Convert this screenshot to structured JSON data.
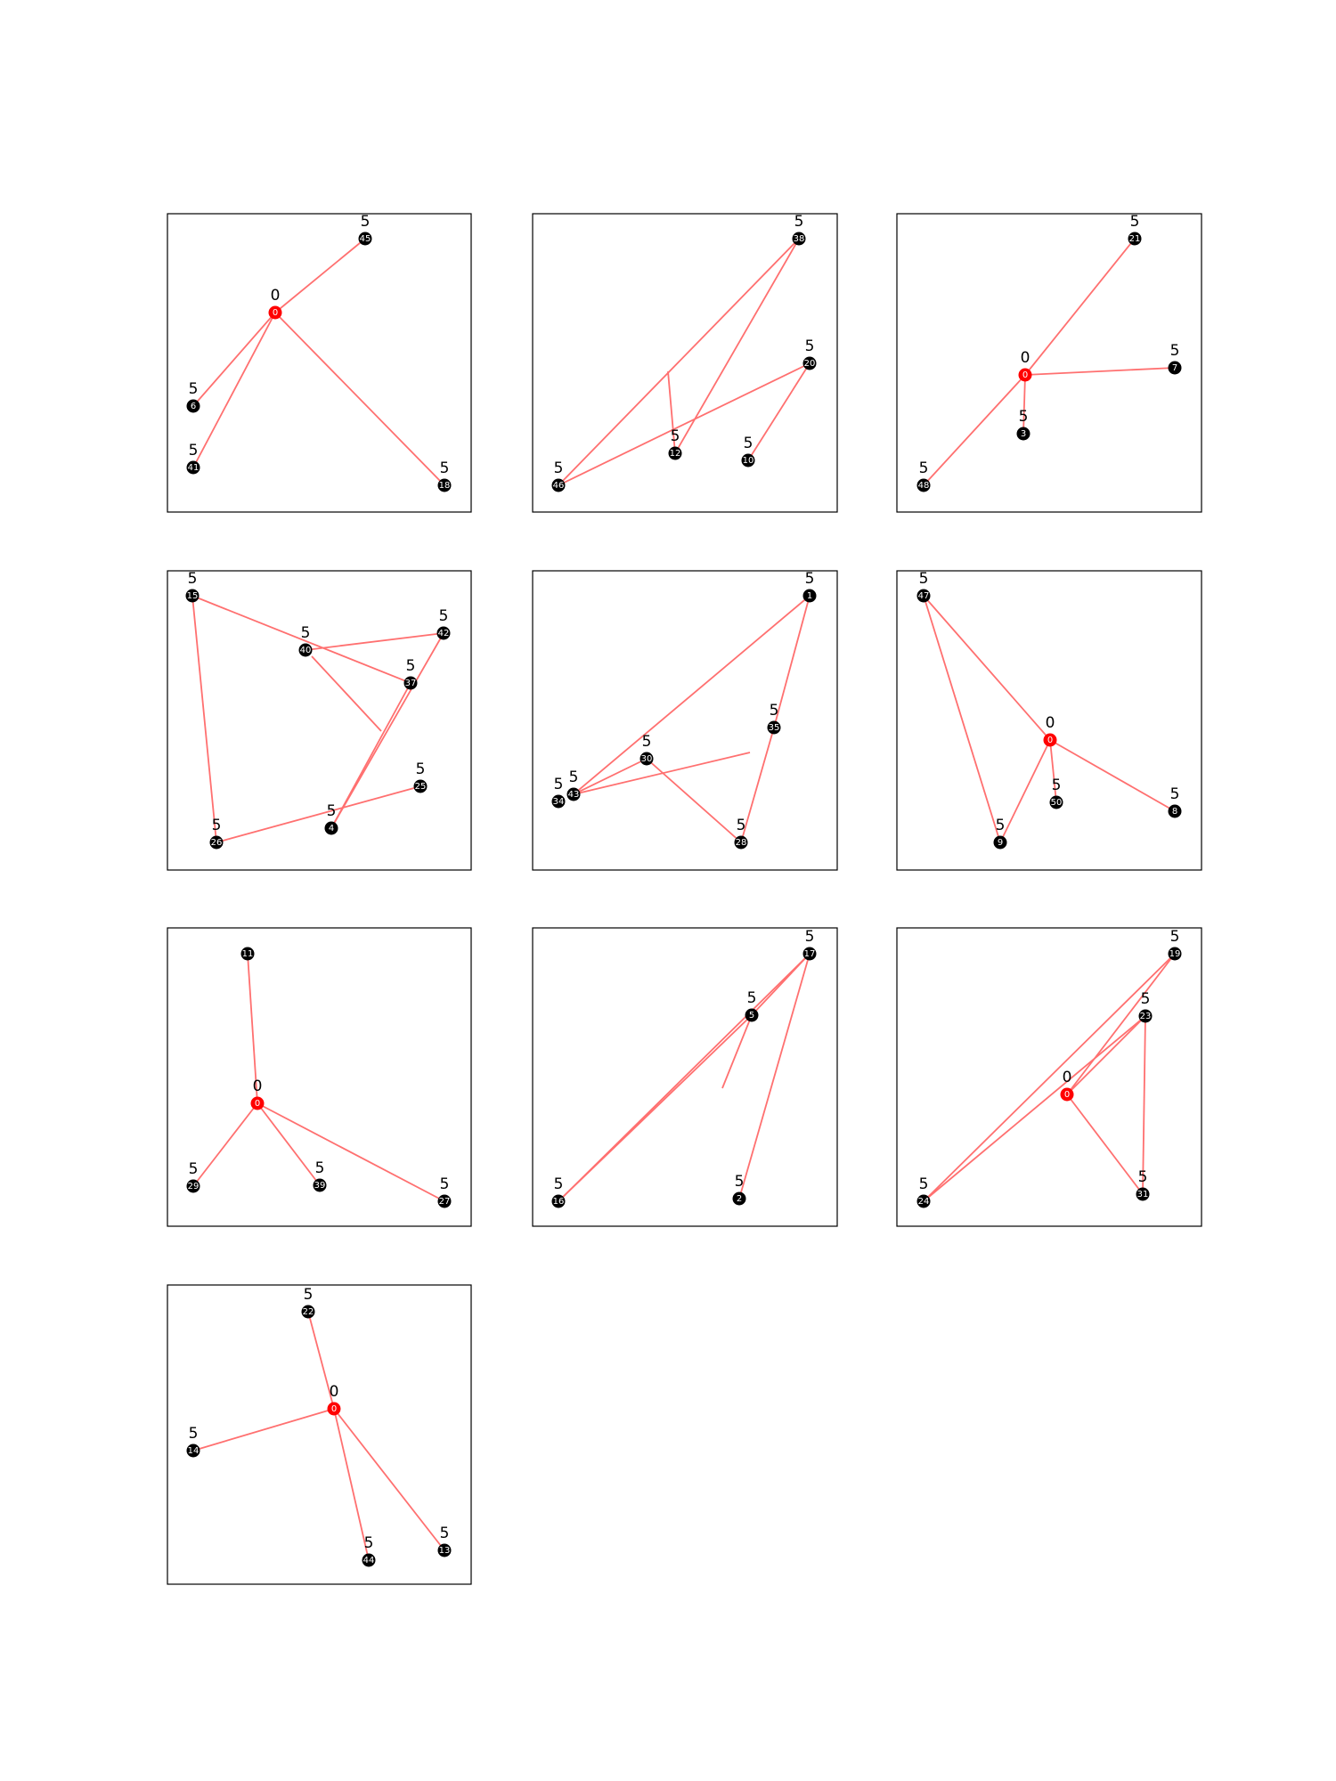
{
  "panels": [
    {
      "nodes": [
        {
          "id": "0",
          "value": "0",
          "red": true
        },
        {
          "id": "45",
          "value": "5"
        },
        {
          "id": "6",
          "value": "5"
        },
        {
          "id": "41",
          "value": "5"
        },
        {
          "id": "18",
          "value": "5"
        }
      ],
      "edges": [
        [
          "0",
          "45"
        ],
        [
          "0",
          "6"
        ],
        [
          "0",
          "41"
        ],
        [
          "0",
          "18"
        ]
      ]
    },
    {
      "nodes": [
        {
          "id": "38",
          "value": "5"
        },
        {
          "id": "20",
          "value": "5"
        },
        {
          "id": "12",
          "value": "5"
        },
        {
          "id": "10",
          "value": "5"
        },
        {
          "id": "46",
          "value": "5"
        }
      ],
      "edges": [
        [
          "38",
          "46"
        ],
        [
          "38",
          "12"
        ],
        [
          "20",
          "46"
        ],
        [
          "20",
          "10"
        ]
      ]
    },
    {
      "nodes": [
        {
          "id": "21",
          "value": "5"
        },
        {
          "id": "0",
          "value": "0",
          "red": true
        },
        {
          "id": "7",
          "value": "5"
        },
        {
          "id": "3",
          "value": "5"
        },
        {
          "id": "48",
          "value": "5"
        }
      ],
      "edges": [
        [
          "0",
          "21"
        ],
        [
          "0",
          "7"
        ],
        [
          "0",
          "3"
        ],
        [
          "0",
          "48"
        ]
      ]
    },
    {
      "nodes": [
        {
          "id": "15",
          "value": "5"
        },
        {
          "id": "40",
          "value": "5"
        },
        {
          "id": "42",
          "value": "5"
        },
        {
          "id": "37",
          "value": "5"
        },
        {
          "id": "25",
          "value": "5"
        },
        {
          "id": "26",
          "value": "5"
        },
        {
          "id": "4",
          "value": "5"
        }
      ],
      "edges": [
        [
          "15",
          "37"
        ],
        [
          "15",
          "26"
        ],
        [
          "40",
          "42"
        ],
        [
          "42",
          "4"
        ],
        [
          "37",
          "4"
        ],
        [
          "26",
          "25"
        ]
      ]
    },
    {
      "nodes": [
        {
          "id": "1",
          "value": "5"
        },
        {
          "id": "35",
          "value": "5"
        },
        {
          "id": "30",
          "value": "5"
        },
        {
          "id": "34",
          "value": "5"
        },
        {
          "id": "43",
          "value": "5"
        },
        {
          "id": "28",
          "value": "5"
        }
      ],
      "edges": [
        [
          "1",
          "43"
        ],
        [
          "1",
          "35"
        ],
        [
          "35",
          "28"
        ],
        [
          "43",
          "30"
        ],
        [
          "30",
          "28"
        ]
      ]
    },
    {
      "nodes": [
        {
          "id": "47",
          "value": "5"
        },
        {
          "id": "0",
          "value": "0",
          "red": true
        },
        {
          "id": "50",
          "value": "5"
        },
        {
          "id": "8",
          "value": "5"
        },
        {
          "id": "9",
          "value": "5"
        }
      ],
      "edges": [
        [
          "47",
          "0"
        ],
        [
          "47",
          "9"
        ],
        [
          "0",
          "9"
        ],
        [
          "0",
          "50"
        ],
        [
          "0",
          "8"
        ]
      ]
    },
    {
      "nodes": [
        {
          "id": "11",
          "value": ""
        },
        {
          "id": "0",
          "value": "0",
          "red": true
        },
        {
          "id": "29",
          "value": "5"
        },
        {
          "id": "39",
          "value": "5"
        },
        {
          "id": "27",
          "value": "5"
        }
      ],
      "edges": [
        [
          "0",
          "11"
        ],
        [
          "0",
          "29"
        ],
        [
          "0",
          "39"
        ],
        [
          "0",
          "27"
        ]
      ]
    },
    {
      "nodes": [
        {
          "id": "17",
          "value": "5"
        },
        {
          "id": "5",
          "value": "5"
        },
        {
          "id": "16",
          "value": "5"
        },
        {
          "id": "2",
          "value": "5"
        }
      ],
      "edges": [
        [
          "17",
          "5"
        ],
        [
          "17",
          "16"
        ],
        [
          "17",
          "2"
        ],
        [
          "5",
          "16"
        ]
      ]
    },
    {
      "nodes": [
        {
          "id": "19",
          "value": "5"
        },
        {
          "id": "23",
          "value": "5"
        },
        {
          "id": "0",
          "value": "0",
          "red": true
        },
        {
          "id": "24",
          "value": "5"
        },
        {
          "id": "31",
          "value": "5"
        }
      ],
      "edges": [
        [
          "19",
          "24"
        ],
        [
          "19",
          "0"
        ],
        [
          "0",
          "23"
        ],
        [
          "23",
          "24"
        ],
        [
          "23",
          "31"
        ],
        [
          "0",
          "31"
        ]
      ]
    },
    {
      "nodes": [
        {
          "id": "22",
          "value": "5"
        },
        {
          "id": "0",
          "value": "0",
          "red": true
        },
        {
          "id": "14",
          "value": "5"
        },
        {
          "id": "44",
          "value": "5"
        },
        {
          "id": "13",
          "value": "5"
        }
      ],
      "edges": [
        [
          "0",
          "22"
        ],
        [
          "0",
          "14"
        ],
        [
          "0",
          "44"
        ],
        [
          "0",
          "13"
        ]
      ]
    }
  ]
}
